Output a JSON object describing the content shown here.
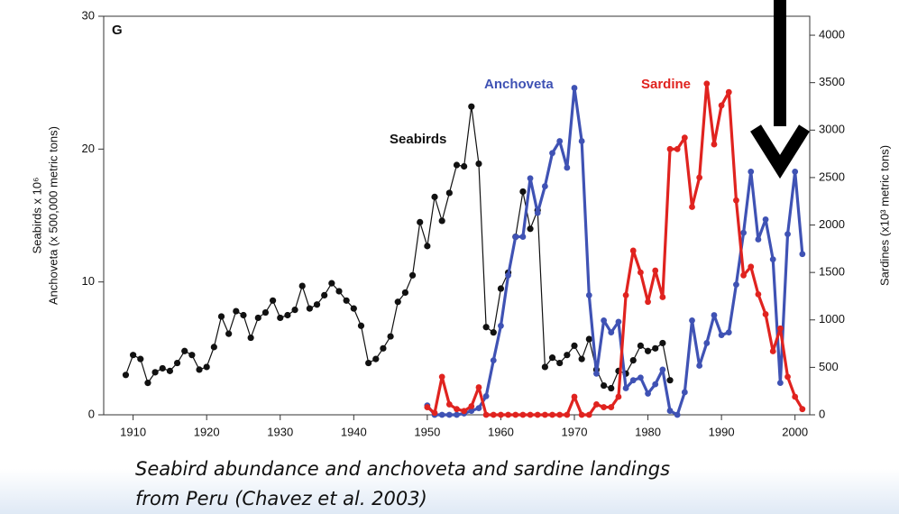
{
  "chart_data": {
    "type": "line",
    "annotations": [
      "G",
      "Seabirds",
      "Anchoveta",
      "Sardine"
    ],
    "ylabel": [
      "Seabirds x 10⁶",
      "Anchoveta (x 500,000 metric tons)"
    ],
    "y2label": "Sardines (x10³ metric tons)",
    "caption": [
      "Seabird abundance and anchoveta and sardine landings",
      "from Peru (Chavez et al. 2003)"
    ],
    "xlim": [
      1906,
      2002
    ],
    "xticks": [
      1910,
      1920,
      1930,
      1940,
      1950,
      1960,
      1970,
      1980,
      1990,
      2000
    ],
    "ylim": [
      0,
      30
    ],
    "yticks": [
      0,
      10,
      20,
      30
    ],
    "y2lim": [
      0,
      4200
    ],
    "y2ticks": [
      0,
      500,
      1000,
      1500,
      2000,
      2500,
      3000,
      3500,
      4000
    ],
    "series": [
      {
        "name": "Seabirds",
        "color": "#111111",
        "x": [
          1909,
          1910,
          1911,
          1912,
          1913,
          1914,
          1915,
          1916,
          1917,
          1918,
          1919,
          1920,
          1921,
          1922,
          1923,
          1924,
          1925,
          1926,
          1927,
          1928,
          1929,
          1930,
          1931,
          1932,
          1933,
          1934,
          1935,
          1936,
          1937,
          1938,
          1939,
          1940,
          1941,
          1942,
          1943,
          1944,
          1945,
          1946,
          1947,
          1948,
          1949,
          1950,
          1951,
          1952,
          1953,
          1954,
          1955,
          1956,
          1957,
          1958,
          1959,
          1960,
          1961,
          1962,
          1963,
          1964,
          1965,
          1966,
          1967,
          1968,
          1969,
          1970,
          1971,
          1972,
          1973,
          1974,
          1975,
          1976,
          1977,
          1978,
          1979,
          1980,
          1981,
          1982,
          1983
        ],
        "values": [
          3.0,
          4.5,
          4.2,
          2.4,
          3.2,
          3.5,
          3.3,
          3.9,
          4.8,
          4.5,
          3.4,
          3.6,
          5.1,
          7.4,
          6.1,
          7.8,
          7.5,
          5.8,
          7.3,
          7.7,
          8.6,
          7.3,
          7.5,
          7.9,
          9.7,
          8.0,
          8.3,
          9.0,
          9.9,
          9.3,
          8.6,
          8.0,
          6.7,
          3.9,
          4.2,
          5.0,
          5.9,
          8.5,
          9.2,
          10.5,
          14.5,
          12.7,
          16.4,
          14.6,
          16.7,
          18.8,
          18.7,
          23.2,
          18.9,
          6.6,
          6.2,
          9.5,
          10.7,
          13.4,
          16.8,
          14.0,
          15.4,
          3.6,
          4.3,
          3.9,
          4.5,
          5.2,
          4.2,
          5.7,
          3.4,
          2.2,
          2.0,
          3.3,
          3.1,
          4.1,
          5.2,
          4.8,
          5.0,
          5.4,
          2.6
        ]
      },
      {
        "name": "Anchoveta",
        "color": "#3f52b4",
        "x": [
          1950,
          1951,
          1952,
          1953,
          1954,
          1955,
          1956,
          1957,
          1958,
          1959,
          1960,
          1961,
          1962,
          1963,
          1964,
          1965,
          1966,
          1967,
          1968,
          1969,
          1970,
          1971,
          1972,
          1973,
          1974,
          1975,
          1976,
          1977,
          1978,
          1979,
          1980,
          1981,
          1982,
          1983,
          1984,
          1985,
          1986,
          1987,
          1988,
          1989,
          1990,
          1991,
          1992,
          1993,
          1994,
          1995,
          1996,
          1997,
          1998,
          1999,
          2000,
          2001
        ],
        "values": [
          0.7,
          0,
          0,
          0,
          0,
          0.1,
          0.3,
          0.5,
          1.4,
          4.1,
          6.7,
          10.5,
          13.4,
          13.4,
          17.8,
          15.2,
          17.2,
          19.7,
          20.6,
          18.6,
          24.6,
          20.6,
          9.0,
          3.1,
          7.1,
          6.2,
          7.0,
          2.0,
          2.6,
          2.8,
          1.6,
          2.3,
          3.4,
          0.3,
          0,
          1.7,
          7.1,
          3.7,
          5.4,
          7.5,
          6.0,
          6.2,
          9.8,
          13.7,
          18.3,
          13.2,
          14.7,
          11.7,
          2.4,
          13.6,
          18.3,
          12.1
        ]
      },
      {
        "name": "Sardine",
        "color": "#e0231f",
        "axis": "y2",
        "x": [
          1950,
          1951,
          1952,
          1953,
          1954,
          1955,
          1956,
          1957,
          1958,
          1959,
          1960,
          1961,
          1962,
          1963,
          1964,
          1965,
          1966,
          1967,
          1968,
          1969,
          1970,
          1971,
          1972,
          1973,
          1974,
          1975,
          1976,
          1977,
          1978,
          1979,
          1980,
          1981,
          1982,
          1983,
          1984,
          1985,
          1986,
          1987,
          1988,
          1989,
          1990,
          1991,
          1992,
          1993,
          1994,
          1995,
          1996,
          1997,
          1998,
          1999,
          2000,
          2001
        ],
        "values": [
          80,
          20,
          400,
          110,
          60,
          40,
          90,
          290,
          0,
          0,
          0,
          0,
          0,
          0,
          0,
          0,
          0,
          0,
          0,
          0,
          190,
          0,
          0,
          110,
          80,
          80,
          190,
          1260,
          1730,
          1500,
          1190,
          1520,
          1240,
          2800,
          2800,
          2920,
          2190,
          2500,
          3490,
          2850,
          3260,
          3400,
          2260,
          1470,
          1560,
          1270,
          1060,
          670,
          910,
          400,
          190,
          60
        ]
      }
    ]
  }
}
